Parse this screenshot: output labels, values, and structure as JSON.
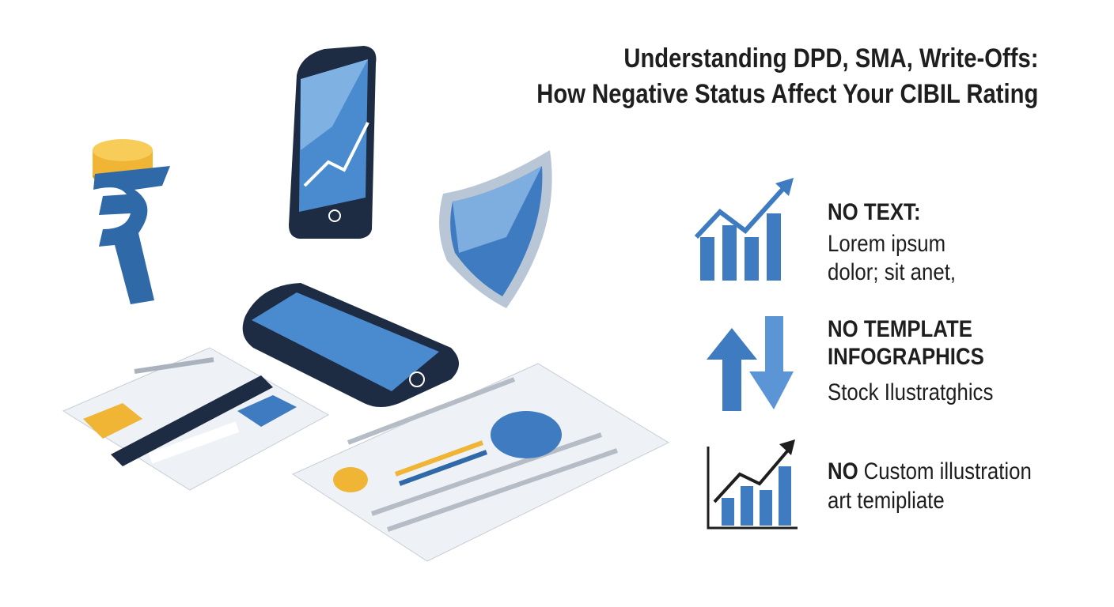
{
  "header": {
    "title_lines": [
      "Understanding DPD, SMA, Write-Offs:",
      "How Negative Status Affect Your CIBIL Rating"
    ]
  },
  "items": [
    {
      "heading_lines": [
        "NO TEXT:"
      ],
      "body_lines": [
        "Lorem ipsum",
        "dolor; sit anet,"
      ]
    },
    {
      "heading_lines": [
        "NO TEMPLATE",
        "INFOGRAPHICS"
      ],
      "body_lines": [
        "Stock Ilustratghics"
      ]
    },
    {
      "heading_lines": [
        "NO"
      ],
      "body_lines": [
        "Custom illustration",
        "art temipliate"
      ]
    }
  ]
}
